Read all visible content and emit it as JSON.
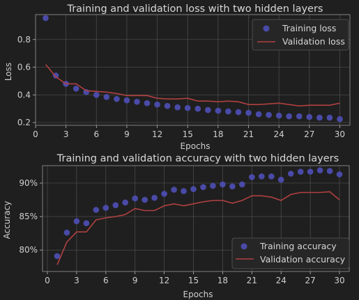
{
  "chart_data": [
    {
      "type": "line",
      "title": "Training and validation loss with two hidden layers",
      "xlabel": "Epochs",
      "ylabel": "Loss",
      "xlim": [
        0,
        31
      ],
      "ylim": [
        0.18,
        0.98
      ],
      "xticks": [
        0,
        3,
        6,
        9,
        12,
        15,
        18,
        21,
        24,
        27,
        30
      ],
      "yticks": [
        0.2,
        0.4,
        0.6,
        0.8
      ],
      "ytick_labels": [
        "0.2",
        "0.4",
        "0.6",
        "0.8"
      ],
      "grid": true,
      "legend_position": "top-right",
      "x": [
        1,
        2,
        3,
        4,
        5,
        6,
        7,
        8,
        9,
        10,
        11,
        12,
        13,
        14,
        15,
        16,
        17,
        18,
        19,
        20,
        21,
        22,
        23,
        24,
        25,
        26,
        27,
        28,
        29,
        30
      ],
      "series": [
        {
          "name": "Training loss",
          "style": "scatter",
          "color": "#4a4aa8",
          "values": [
            0.955,
            0.54,
            0.48,
            0.445,
            0.42,
            0.4,
            0.385,
            0.37,
            0.36,
            0.35,
            0.34,
            0.33,
            0.32,
            0.31,
            0.305,
            0.3,
            0.29,
            0.285,
            0.28,
            0.275,
            0.27,
            0.26,
            0.255,
            0.25,
            0.245,
            0.245,
            0.24,
            0.235,
            0.235,
            0.225
          ]
        },
        {
          "name": "Validation loss",
          "style": "line",
          "color": "#b04040",
          "values": [
            0.62,
            0.53,
            0.48,
            0.48,
            0.43,
            0.425,
            0.42,
            0.41,
            0.395,
            0.395,
            0.395,
            0.375,
            0.37,
            0.37,
            0.375,
            0.355,
            0.355,
            0.35,
            0.355,
            0.35,
            0.33,
            0.33,
            0.335,
            0.34,
            0.33,
            0.32,
            0.325,
            0.325,
            0.325,
            0.34
          ]
        }
      ]
    },
    {
      "type": "line",
      "title": "Training and validation accuracy with two hidden layers",
      "xlabel": "Epochs",
      "ylabel": "Accuracy",
      "xlim": [
        -0.5,
        31
      ],
      "ylim": [
        0.768,
        0.926
      ],
      "xticks": [
        0,
        3,
        6,
        9,
        12,
        15,
        18,
        21,
        24,
        27,
        30
      ],
      "yticks": [
        0.8,
        0.85,
        0.9
      ],
      "ytick_labels": [
        "80%",
        "85%",
        "90%"
      ],
      "grid": true,
      "legend_position": "bottom-right",
      "x": [
        1,
        2,
        3,
        4,
        5,
        6,
        7,
        8,
        9,
        10,
        11,
        12,
        13,
        14,
        15,
        16,
        17,
        18,
        19,
        20,
        21,
        22,
        23,
        24,
        25,
        26,
        27,
        28,
        29,
        30
      ],
      "series": [
        {
          "name": "Training accuracy",
          "style": "scatter",
          "color": "#4a4aa8",
          "values": [
            0.791,
            0.826,
            0.843,
            0.84,
            0.86,
            0.863,
            0.867,
            0.871,
            0.877,
            0.875,
            0.878,
            0.884,
            0.89,
            0.888,
            0.891,
            0.894,
            0.896,
            0.898,
            0.895,
            0.898,
            0.909,
            0.91,
            0.91,
            0.905,
            0.914,
            0.917,
            0.917,
            0.919,
            0.918,
            0.913
          ]
        },
        {
          "name": "Validation accuracy",
          "style": "line",
          "color": "#b04040",
          "values": [
            0.778,
            0.812,
            0.827,
            0.827,
            0.845,
            0.848,
            0.85,
            0.853,
            0.862,
            0.859,
            0.859,
            0.866,
            0.869,
            0.866,
            0.869,
            0.872,
            0.874,
            0.874,
            0.87,
            0.874,
            0.881,
            0.881,
            0.879,
            0.874,
            0.883,
            0.886,
            0.886,
            0.886,
            0.887,
            0.875
          ]
        }
      ]
    }
  ]
}
